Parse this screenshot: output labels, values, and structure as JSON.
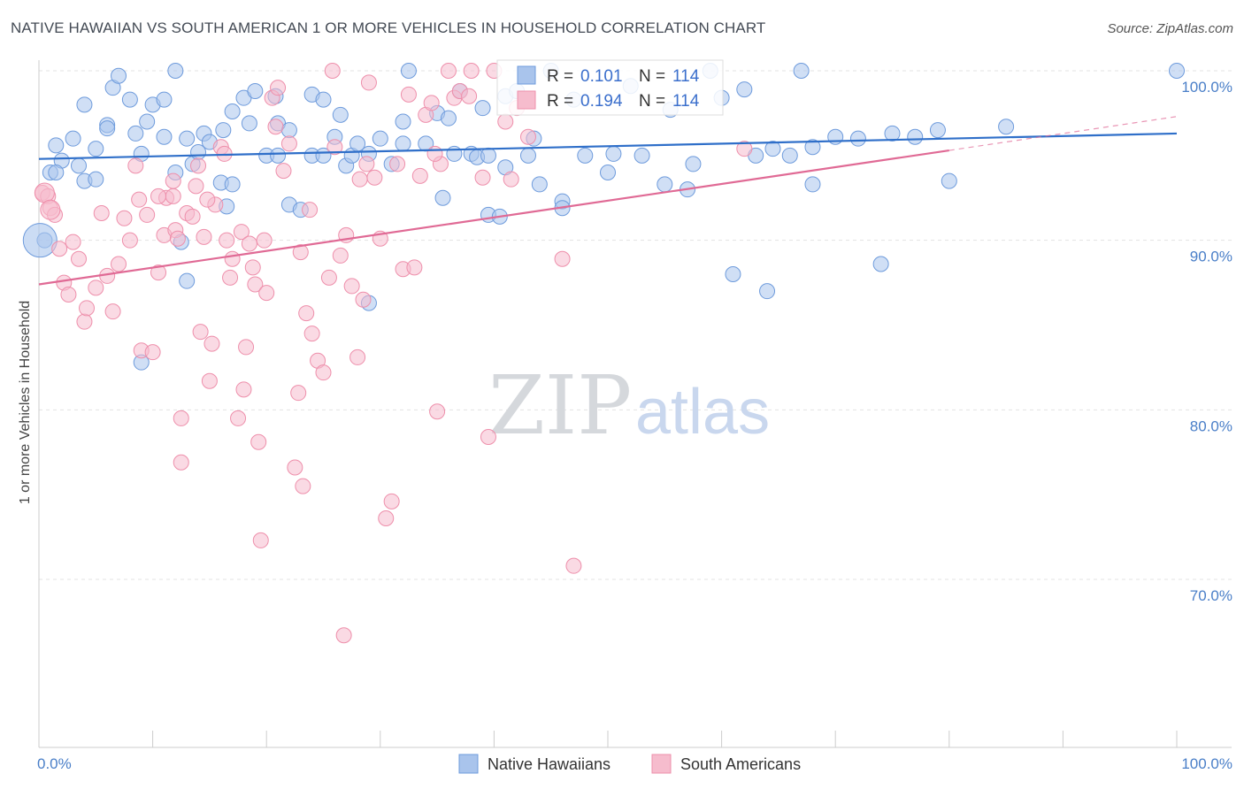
{
  "title": "NATIVE HAWAIIAN VS SOUTH AMERICAN 1 OR MORE VEHICLES IN HOUSEHOLD CORRELATION CHART",
  "source": "Source: ZipAtlas.com",
  "watermark": {
    "zip": "ZIP",
    "atlas": "atlas"
  },
  "chart_data": {
    "type": "scatter",
    "ylabel": "1 or more Vehicles in Household",
    "xlim": [
      0,
      100
    ],
    "ylim": [
      60,
      100
    ],
    "x_tick_labels": [
      "0.0%",
      "100.0%"
    ],
    "y_ticks": [
      {
        "value": 100,
        "label": "100.0%"
      },
      {
        "value": 90,
        "label": "90.0%"
      },
      {
        "value": 80,
        "label": "80.0%"
      },
      {
        "value": 70,
        "label": "70.0%"
      }
    ],
    "grid": true,
    "legend_position": "top-center",
    "stats": [
      {
        "r_label": "R =",
        "r_value": "0.101",
        "n_label": "N =",
        "n_value": "114"
      },
      {
        "r_label": "R =",
        "r_value": "0.194",
        "n_label": "N =",
        "n_value": "114"
      }
    ],
    "series": [
      {
        "name": "Native Hawaiians",
        "fill": "#a9c4ec",
        "stroke": "#6e9bdc",
        "line_color": "#2f6fc9",
        "trend": {
          "x1": 0,
          "y1": 94.8,
          "x2": 100,
          "y2": 96.3
        },
        "points": [
          [
            1.5,
            95.6
          ],
          [
            2,
            94.7
          ],
          [
            1,
            94
          ],
          [
            3,
            96
          ],
          [
            3.5,
            94.4
          ],
          [
            4,
            93.5
          ],
          [
            4,
            98
          ],
          [
            5,
            95.4
          ],
          [
            6,
            96.8
          ],
          [
            6.5,
            99
          ],
          [
            7,
            99.7
          ],
          [
            8,
            98.3
          ],
          [
            8.5,
            96.3
          ],
          [
            9,
            95.1
          ],
          [
            9.5,
            97
          ],
          [
            10,
            98
          ],
          [
            11,
            96.1
          ],
          [
            11,
            98.3
          ],
          [
            12,
            94
          ],
          [
            12,
            100
          ],
          [
            13,
            96
          ],
          [
            13.5,
            94.5
          ],
          [
            14,
            95.2
          ],
          [
            14.5,
            96.3
          ],
          [
            15,
            95.8
          ],
          [
            16,
            93.4
          ],
          [
            16.5,
            92
          ],
          [
            17,
            93.3
          ],
          [
            17,
            97.6
          ],
          [
            18,
            98.4
          ],
          [
            18.5,
            96.9
          ],
          [
            19,
            98.8
          ],
          [
            20,
            95
          ],
          [
            21,
            96.9
          ],
          [
            22,
            92.1
          ],
          [
            23,
            91.8
          ],
          [
            24,
            95
          ],
          [
            24,
            98.6
          ],
          [
            25,
            98.3
          ],
          [
            25,
            95
          ],
          [
            26,
            96.1
          ],
          [
            27,
            94.4
          ],
          [
            27.5,
            95
          ],
          [
            28,
            95.7
          ],
          [
            29,
            95.1
          ],
          [
            30,
            96
          ],
          [
            31,
            94.5
          ],
          [
            32,
            97
          ],
          [
            32,
            95.7
          ],
          [
            32.5,
            100
          ],
          [
            34,
            95.7
          ],
          [
            35,
            97.5
          ],
          [
            35.5,
            92.5
          ],
          [
            36,
            97.2
          ],
          [
            36.5,
            95.1
          ],
          [
            37,
            98.8
          ],
          [
            38,
            95.1
          ],
          [
            38.5,
            94.9
          ],
          [
            39,
            97.8
          ],
          [
            39.5,
            91.5
          ],
          [
            40.5,
            91.4
          ],
          [
            41,
            94.3
          ],
          [
            41,
            98.5
          ],
          [
            42,
            98.8
          ],
          [
            43,
            95
          ],
          [
            43.5,
            96
          ],
          [
            44,
            93.3
          ],
          [
            45,
            100
          ],
          [
            46,
            92.3
          ],
          [
            46,
            91.9
          ],
          [
            47,
            98.3
          ],
          [
            48,
            95
          ],
          [
            50,
            94
          ],
          [
            50.5,
            95.1
          ],
          [
            52,
            99.1
          ],
          [
            53,
            95
          ],
          [
            55,
            93.3
          ],
          [
            55.5,
            97.7
          ],
          [
            57,
            93
          ],
          [
            57.5,
            94.5
          ],
          [
            59,
            100
          ],
          [
            60,
            98.4
          ],
          [
            61,
            88
          ],
          [
            62,
            98.9
          ],
          [
            63,
            95
          ],
          [
            64,
            87
          ],
          [
            64.5,
            95.4
          ],
          [
            66,
            95
          ],
          [
            67,
            100
          ],
          [
            68,
            93.3
          ],
          [
            68,
            95.5
          ],
          [
            70,
            96.1
          ],
          [
            72,
            96
          ],
          [
            74,
            88.6
          ],
          [
            75,
            96.3
          ],
          [
            77,
            96.1
          ],
          [
            79,
            96.5
          ],
          [
            80,
            93.5
          ],
          [
            85,
            96.7
          ],
          [
            100,
            100
          ],
          [
            0.5,
            90
          ],
          [
            1.5,
            94
          ],
          [
            5,
            93.6
          ],
          [
            6,
            96.6
          ],
          [
            9,
            82.8
          ],
          [
            13,
            87.6
          ],
          [
            21,
            95
          ],
          [
            26.5,
            97.4
          ],
          [
            22,
            96.5
          ],
          [
            29,
            86.3
          ],
          [
            12.5,
            89.9
          ],
          [
            16.2,
            96.5
          ],
          [
            20.8,
            98.5
          ],
          [
            39.5,
            95
          ]
        ]
      },
      {
        "name": "South Americans",
        "fill": "#f6bccd",
        "stroke": "#ee8fab",
        "line_color": "#e06a95",
        "trend": {
          "x1": 0,
          "y1": 87.4,
          "x2": 80,
          "y2": 95.3
        },
        "trend_dash": {
          "x1": 80,
          "y1": 95.3,
          "x2": 100,
          "y2": 97.3
        },
        "points": [
          [
            0.3,
            92.8
          ],
          [
            0.8,
            92.6
          ],
          [
            1,
            91.9
          ],
          [
            1.4,
            91.5
          ],
          [
            1.8,
            89.5
          ],
          [
            2.2,
            87.5
          ],
          [
            2.6,
            86.8
          ],
          [
            3,
            89.9
          ],
          [
            3.5,
            88.9
          ],
          [
            4,
            85.2
          ],
          [
            4.2,
            86
          ],
          [
            5,
            87.2
          ],
          [
            5.5,
            91.6
          ],
          [
            6,
            87.9
          ],
          [
            6.5,
            85.8
          ],
          [
            7,
            88.6
          ],
          [
            7.5,
            91.3
          ],
          [
            8,
            90
          ],
          [
            8.5,
            94.4
          ],
          [
            9,
            83.5
          ],
          [
            9.5,
            91.5
          ],
          [
            10,
            83.4
          ],
          [
            10.5,
            88.1
          ],
          [
            11,
            90.3
          ],
          [
            11.2,
            92.5
          ],
          [
            11.8,
            92.6
          ],
          [
            12,
            90.6
          ],
          [
            12.5,
            79.5
          ],
          [
            12.5,
            76.9
          ],
          [
            13,
            91.6
          ],
          [
            13.5,
            91.4
          ],
          [
            13.8,
            93.2
          ],
          [
            14,
            94.4
          ],
          [
            14.2,
            84.6
          ],
          [
            14.5,
            90.2
          ],
          [
            15,
            81.7
          ],
          [
            15.2,
            83.9
          ],
          [
            15.5,
            92.1
          ],
          [
            16,
            95.5
          ],
          [
            16.3,
            95.1
          ],
          [
            16.5,
            90
          ],
          [
            16.8,
            87.8
          ],
          [
            17,
            88.9
          ],
          [
            17.5,
            79.5
          ],
          [
            17.8,
            90.5
          ],
          [
            18,
            81.2
          ],
          [
            18.2,
            83.7
          ],
          [
            18.5,
            89.8
          ],
          [
            18.8,
            88.4
          ],
          [
            19,
            87.4
          ],
          [
            19.3,
            78.1
          ],
          [
            19.5,
            72.3
          ],
          [
            19.8,
            90
          ],
          [
            20,
            86.9
          ],
          [
            20.5,
            98.4
          ],
          [
            20.8,
            96.7
          ],
          [
            21,
            99
          ],
          [
            21.5,
            94.1
          ],
          [
            22,
            95.7
          ],
          [
            22.5,
            76.6
          ],
          [
            22.8,
            81
          ],
          [
            23,
            89.3
          ],
          [
            23.2,
            75.5
          ],
          [
            23.5,
            85.7
          ],
          [
            24,
            84.5
          ],
          [
            24.5,
            82.9
          ],
          [
            25,
            82.2
          ],
          [
            25.5,
            87.8
          ],
          [
            25.8,
            100
          ],
          [
            26,
            95.5
          ],
          [
            26.5,
            89.1
          ],
          [
            27,
            90.3
          ],
          [
            27.5,
            87.3
          ],
          [
            28,
            83.1
          ],
          [
            28.5,
            86.5
          ],
          [
            28.8,
            94.5
          ],
          [
            29,
            99.3
          ],
          [
            29.5,
            93.7
          ],
          [
            30,
            90.1
          ],
          [
            30.5,
            73.6
          ],
          [
            31,
            74.6
          ],
          [
            31.5,
            94.5
          ],
          [
            32,
            88.3
          ],
          [
            32.5,
            98.6
          ],
          [
            33,
            88.4
          ],
          [
            33.5,
            93.8
          ],
          [
            34,
            97.4
          ],
          [
            34.5,
            98.1
          ],
          [
            35,
            79.9
          ],
          [
            35.3,
            94.5
          ],
          [
            36,
            100
          ],
          [
            36.5,
            98.4
          ],
          [
            37,
            98.8
          ],
          [
            38,
            100
          ],
          [
            39,
            93.7
          ],
          [
            39.5,
            78.4
          ],
          [
            40,
            100
          ],
          [
            41,
            97
          ],
          [
            41.5,
            93.6
          ],
          [
            42,
            97.8
          ],
          [
            43,
            96.1
          ],
          [
            46,
            88.9
          ],
          [
            47,
            70.8
          ],
          [
            26.8,
            66.7
          ],
          [
            8.8,
            92.4
          ],
          [
            10.5,
            92.6
          ],
          [
            11.8,
            93.5
          ],
          [
            12.2,
            90.1
          ],
          [
            14.8,
            92.4
          ],
          [
            23.8,
            91.8
          ],
          [
            28.2,
            93.6
          ],
          [
            34.8,
            95.1
          ],
          [
            37.8,
            98.5
          ],
          [
            62,
            95.4
          ]
        ]
      }
    ]
  }
}
